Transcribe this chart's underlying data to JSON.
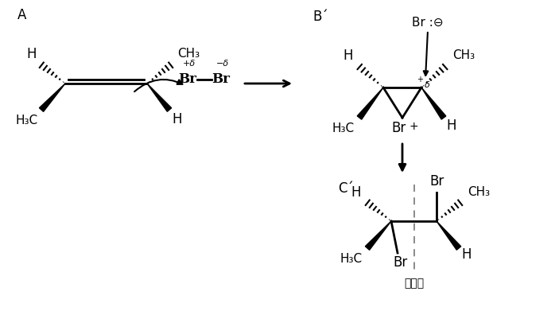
{
  "bg_color": "#ffffff",
  "text_color": "#000000",
  "label_A": "A",
  "label_B": "B´",
  "label_C": "C´",
  "symmetry_label": "対称面",
  "fig_width": 6.98,
  "fig_height": 3.91,
  "dpi": 100
}
